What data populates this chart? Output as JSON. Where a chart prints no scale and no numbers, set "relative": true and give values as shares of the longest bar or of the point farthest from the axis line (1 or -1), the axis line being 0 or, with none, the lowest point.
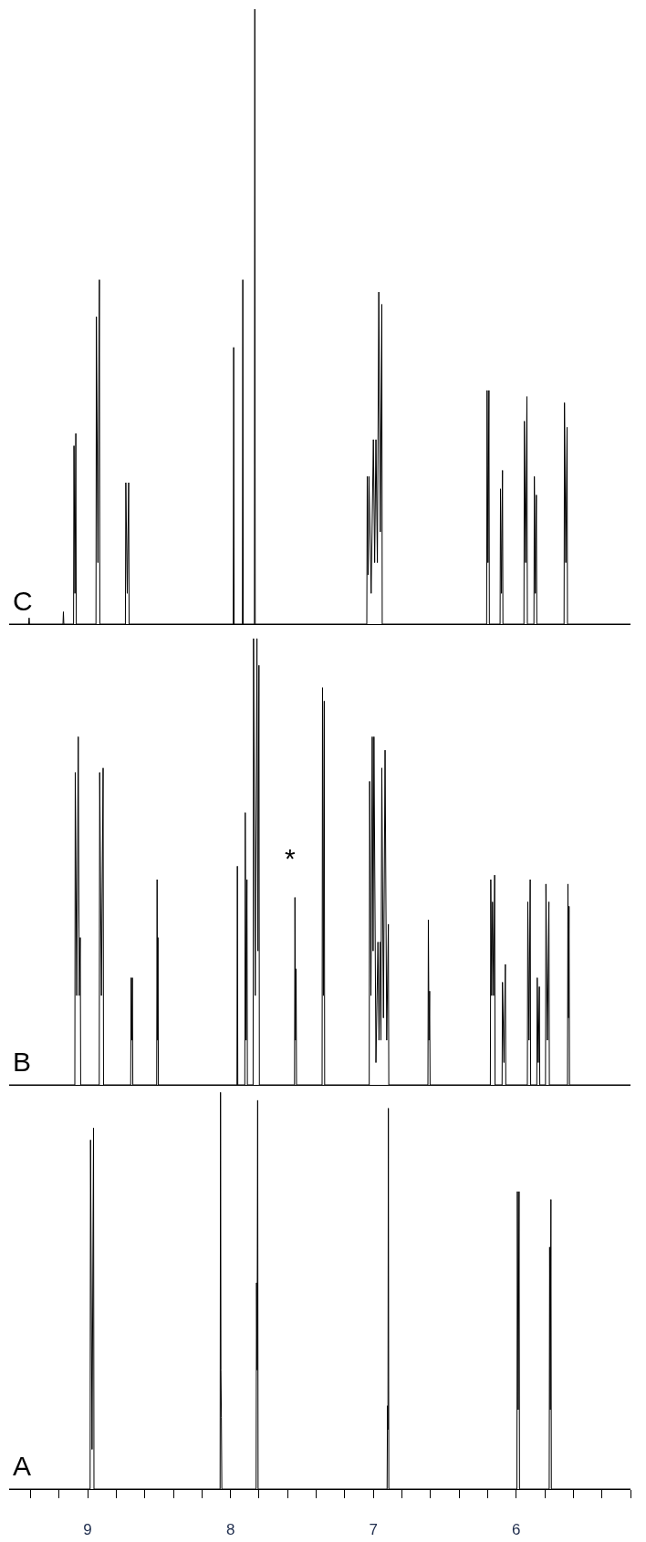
{
  "chart_data": [
    {
      "type": "line",
      "relative": true,
      "color": "#000000",
      "xlim": [
        9.55,
        5.2
      ],
      "tick_labels": false,
      "annotations": [
        "C"
      ],
      "x": [
        9.55,
        9.413,
        9.41,
        9.407,
        9.173,
        9.17,
        9.167,
        9.099,
        9.096,
        9.0895,
        9.083,
        9.08,
        8.942,
        8.939,
        8.9285,
        8.918,
        8.915,
        8.736,
        8.733,
        8.723,
        8.713,
        8.71,
        7.981,
        7.978,
        7.975,
        7.917,
        7.914,
        7.911,
        7.833,
        7.83,
        7.827,
        7.046,
        7.043,
        7.037,
        7.031,
        7.0155,
        7.0,
        6.991,
        6.982,
        6.972,
        6.962,
        6.9515,
        6.941,
        6.938,
        6.207,
        6.204,
        6.1975,
        6.191,
        6.188,
        6.113,
        6.11,
        6.103,
        6.096,
        6.093,
        5.946,
        5.943,
        5.934,
        5.925,
        5.922,
        5.876,
        5.873,
        5.866,
        5.859,
        5.856,
        5.665,
        5.662,
        5.653,
        5.644,
        5.641,
        5.2
      ],
      "values": [
        0,
        0,
        0.01,
        0,
        0,
        0.02,
        0,
        0,
        0.29,
        0.05,
        0.31,
        0,
        0,
        0.5,
        0.1,
        0.56,
        0,
        0,
        0.23,
        0.05,
        0.23,
        0,
        0,
        0.45,
        0,
        0,
        0.56,
        0,
        0,
        1,
        0,
        0,
        0.24,
        0.08,
        0.24,
        0.05,
        0.3,
        0.1,
        0.3,
        0.1,
        0.54,
        0.15,
        0.52,
        0,
        0,
        0.38,
        0.1,
        0.38,
        0,
        0,
        0.22,
        0.05,
        0.25,
        0,
        0,
        0.33,
        0.1,
        0.37,
        0,
        0,
        0.24,
        0.05,
        0.21,
        0,
        0,
        0.36,
        0.1,
        0.32,
        0,
        0
      ]
    },
    {
      "type": "line",
      "relative": true,
      "color": "#000000",
      "xlim": [
        9.55,
        5.2
      ],
      "tick_labels": false,
      "annotations": [
        "B",
        "*"
      ],
      "x": [
        9.55,
        9.09,
        9.087,
        9.0765,
        9.066,
        9.059,
        9.052,
        9.049,
        8.919,
        8.916,
        8.904,
        8.892,
        8.889,
        8.699,
        8.696,
        8.6915,
        8.687,
        8.684,
        8.517,
        8.514,
        8.511,
        8.508,
        8.505,
        7.955,
        7.952,
        7.949,
        7.9,
        7.897,
        7.891,
        7.885,
        7.882,
        7.842,
        7.839,
        7.827,
        7.815,
        7.808,
        7.801,
        7.798,
        7.552,
        7.549,
        7.545,
        7.541,
        7.538,
        7.359,
        7.356,
        7.35,
        7.344,
        7.341,
        7.029,
        7.026,
        7.017,
        7.008,
        7.002,
        6.996,
        6.982,
        6.968,
        6.9605,
        6.953,
        6.947,
        6.941,
        6.9295,
        6.918,
        6.9065,
        6.895,
        6.892,
        6.618,
        6.615,
        6.6105,
        6.606,
        6.603,
        6.181,
        6.178,
        6.172,
        6.166,
        6.1585,
        6.151,
        6.148,
        6.099,
        6.096,
        6.086,
        6.076,
        6.073,
        5.922,
        5.919,
        5.9105,
        5.902,
        5.899,
        5.856,
        5.853,
        5.8455,
        5.838,
        5.835,
        5.795,
        5.792,
        5.7815,
        5.771,
        5.768,
        5.641,
        5.638,
        5.634,
        5.63,
        5.627,
        5.2
      ],
      "values": [
        0,
        0,
        0.7,
        0.2,
        0.78,
        0.2,
        0.33,
        0,
        0,
        0.7,
        0.2,
        0.71,
        0,
        0,
        0.24,
        0.1,
        0.24,
        0,
        0,
        0.46,
        0.1,
        0.33,
        0,
        0,
        0.49,
        0,
        0,
        0.61,
        0.1,
        0.46,
        0,
        0,
        1,
        0.2,
        1,
        0.3,
        0.94,
        0,
        0,
        0.42,
        0.1,
        0.26,
        0,
        0,
        0.89,
        0.2,
        0.86,
        0,
        0,
        0.68,
        0.2,
        0.78,
        0.3,
        0.78,
        0.05,
        0.32,
        0.1,
        0.32,
        0.1,
        0.71,
        0.15,
        0.75,
        0.1,
        0.36,
        0,
        0,
        0.37,
        0.1,
        0.21,
        0,
        0,
        0.46,
        0.2,
        0.41,
        0.2,
        0.47,
        0,
        0,
        0.23,
        0.05,
        0.27,
        0,
        0,
        0.41,
        0.1,
        0.46,
        0,
        0,
        0.24,
        0.05,
        0.22,
        0,
        0,
        0.45,
        0.1,
        0.41,
        0,
        0,
        0.45,
        0.15,
        0.4,
        0,
        0
      ]
    },
    {
      "type": "line",
      "relative": true,
      "color": "#000000",
      "xlim": [
        9.55,
        5.2
      ],
      "tick_labels": "x",
      "annotations": [
        "A"
      ],
      "xticks": [
        {
          "value": 9.4,
          "label": null
        },
        {
          "value": 9.2,
          "label": null
        },
        9,
        {
          "value": 8.8,
          "label": null
        },
        {
          "value": 8.6,
          "label": null
        },
        {
          "value": 8.4,
          "label": null
        },
        {
          "value": 8.2,
          "label": null
        },
        8,
        {
          "value": 7.8,
          "label": null
        },
        {
          "value": 7.6,
          "label": null
        },
        {
          "value": 7.4,
          "label": null
        },
        {
          "value": 7.2,
          "label": null
        },
        7,
        {
          "value": 6.8,
          "label": null
        },
        {
          "value": 6.6,
          "label": null
        },
        {
          "value": 6.4,
          "label": null
        },
        {
          "value": 6.2,
          "label": null
        },
        6,
        {
          "value": 5.8,
          "label": null
        },
        {
          "value": 5.6,
          "label": null
        },
        {
          "value": 5.4,
          "label": null
        },
        {
          "value": 5.2,
          "label": null
        }
      ],
      "x": [
        9.55,
        8.983,
        8.98,
        8.9695,
        8.959,
        8.956,
        8.073,
        8.07,
        8.067,
        8.064,
        8.061,
        7.821,
        7.818,
        7.814,
        7.81,
        7.807,
        6.904,
        6.901,
        6.898,
        6.895,
        6.892,
        5.995,
        5.992,
        5.986,
        5.98,
        5.977,
        5.769,
        5.766,
        5.7615,
        5.757,
        5.754,
        5.2
      ],
      "values": [
        0,
        0,
        0.88,
        0.1,
        0.91,
        0,
        0,
        1,
        0.3,
        0.18,
        0,
        0,
        0.52,
        0.3,
        0.98,
        0,
        0,
        0.21,
        0.15,
        0.96,
        0,
        0,
        0.75,
        0.2,
        0.75,
        0,
        0,
        0.61,
        0.2,
        0.73,
        0,
        0
      ]
    }
  ]
}
